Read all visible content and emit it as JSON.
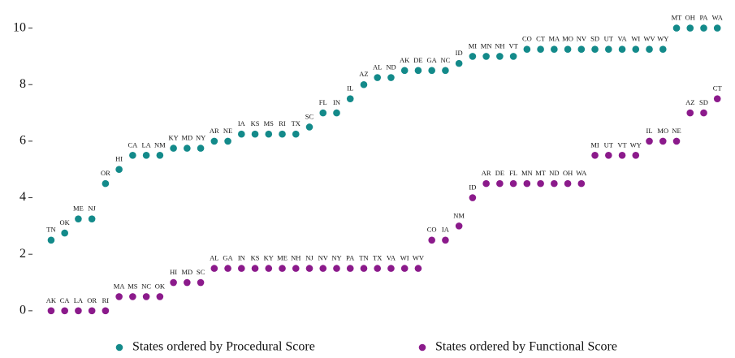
{
  "chart_data": {
    "type": "scatter",
    "ylim": [
      -0.55,
      10.85
    ],
    "yticks": [
      0,
      2,
      4,
      6,
      8,
      10
    ],
    "xlim": [
      -0.37,
      51.3
    ],
    "legend": "bottom",
    "series": [
      {
        "name": "States ordered by Procedural Score",
        "color": "#138a8a",
        "x": [
          1,
          2,
          3,
          4,
          5,
          6,
          7,
          8,
          9,
          10,
          11,
          12,
          13,
          14,
          15,
          16,
          17,
          18,
          19,
          20,
          21,
          22,
          23,
          24,
          25,
          26,
          27,
          28,
          29,
          30,
          31,
          32,
          33,
          34,
          35,
          36,
          37,
          38,
          39,
          40,
          41,
          42,
          43,
          44,
          45,
          46,
          47,
          48,
          49,
          50
        ],
        "labels": [
          "TN",
          "OK",
          "ME",
          "NJ",
          "OR",
          "HI",
          "CA",
          "LA",
          "NM",
          "KY",
          "MD",
          "NY",
          "AR",
          "NE",
          "IA",
          "KS",
          "MS",
          "RI",
          "TX",
          "SC",
          "FL",
          "IN",
          "IL",
          "AZ",
          "AL",
          "ND",
          "AK",
          "DE",
          "GA",
          "NC",
          "ID",
          "MI",
          "MN",
          "NH",
          "VT",
          "CO",
          "CT",
          "MA",
          "MO",
          "NV",
          "SD",
          "UT",
          "VA",
          "WI",
          "WV",
          "WY",
          "MT",
          "OH",
          "PA",
          "WA"
        ],
        "values": [
          2.5,
          2.75,
          3.25,
          3.25,
          4.5,
          5,
          5.5,
          5.5,
          5.5,
          5.75,
          5.75,
          5.75,
          6,
          6,
          6.25,
          6.25,
          6.25,
          6.25,
          6.25,
          6.5,
          7,
          7,
          7.5,
          8,
          8.25,
          8.25,
          8.5,
          8.5,
          8.5,
          8.5,
          8.75,
          9,
          9,
          9,
          9,
          9.25,
          9.25,
          9.25,
          9.25,
          9.25,
          9.25,
          9.25,
          9.25,
          9.25,
          9.25,
          9.25,
          10,
          10,
          10,
          10
        ]
      },
      {
        "name": "States ordered by Functional Score",
        "color": "#8b1a8b",
        "x": [
          1,
          2,
          3,
          4,
          5,
          6,
          7,
          8,
          9,
          10,
          11,
          12,
          13,
          14,
          15,
          16,
          17,
          18,
          19,
          20,
          21,
          22,
          23,
          24,
          25,
          26,
          27,
          28,
          29,
          30,
          31,
          32,
          33,
          34,
          35,
          36,
          37,
          38,
          39,
          40,
          41,
          42,
          43,
          44,
          45,
          46,
          47,
          48,
          49,
          50
        ],
        "labels": [
          "AK",
          "CA",
          "LA",
          "OR",
          "RI",
          "MA",
          "MS",
          "NC",
          "OK",
          "HI",
          "MD",
          "SC",
          "AL",
          "GA",
          "IN",
          "KS",
          "KY",
          "ME",
          "NH",
          "NJ",
          "NV",
          "NY",
          "PA",
          "TN",
          "TX",
          "VA",
          "WI",
          "WV",
          "CO",
          "IA",
          "NM",
          "ID",
          "AR",
          "DE",
          "FL",
          "MN",
          "MT",
          "ND",
          "OH",
          "WA",
          "MI",
          "UT",
          "VT",
          "WY",
          "IL",
          "MO",
          "NE",
          "AZ",
          "SD",
          "CT"
        ],
        "values": [
          0,
          0,
          0,
          0,
          0,
          0.5,
          0.5,
          0.5,
          0.5,
          1,
          1,
          1,
          1.5,
          1.5,
          1.5,
          1.5,
          1.5,
          1.5,
          1.5,
          1.5,
          1.5,
          1.5,
          1.5,
          1.5,
          1.5,
          1.5,
          1.5,
          1.5,
          2.5,
          2.5,
          3,
          4,
          4.5,
          4.5,
          4.5,
          4.5,
          4.5,
          4.5,
          4.5,
          4.5,
          5.5,
          5.5,
          5.5,
          5.5,
          6,
          6,
          6,
          7,
          7,
          7.5
        ]
      }
    ]
  }
}
